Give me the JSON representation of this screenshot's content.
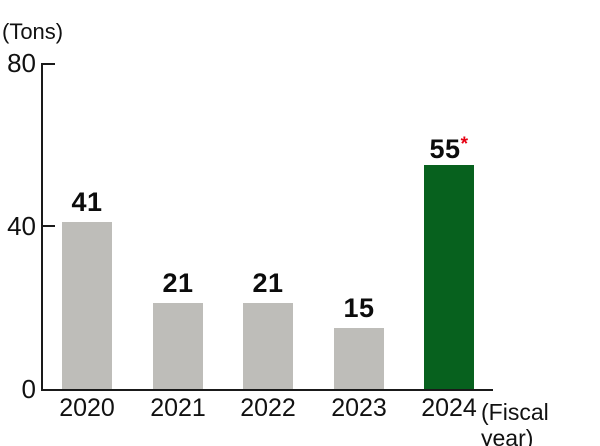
{
  "chart": {
    "unit_label": "(Tons)",
    "x_axis_suffix_label": "(Fiscal year)",
    "y_tick_labels": [
      "80",
      "40",
      "0"
    ]
  },
  "chart_data": {
    "type": "bar",
    "title": "",
    "categories": [
      "2020",
      "2021",
      "2022",
      "2023",
      "2024"
    ],
    "values": [
      41,
      21,
      21,
      15,
      55
    ],
    "value_labels": [
      "41",
      "21",
      "21",
      "15",
      "55"
    ],
    "highlight_index": 4,
    "highlight_marker": "*",
    "xlabel": "(Fiscal year)",
    "ylabel": "(Tons)",
    "ylim": [
      0,
      80
    ],
    "y_ticks": [
      0,
      40,
      80
    ],
    "grid": false,
    "legend": false,
    "colors": {
      "bar_default": "#bebdb9",
      "bar_highlight": "#07611e",
      "marker_note": "#e60012",
      "text": "#111111",
      "axis": "#1a1a1a"
    }
  }
}
